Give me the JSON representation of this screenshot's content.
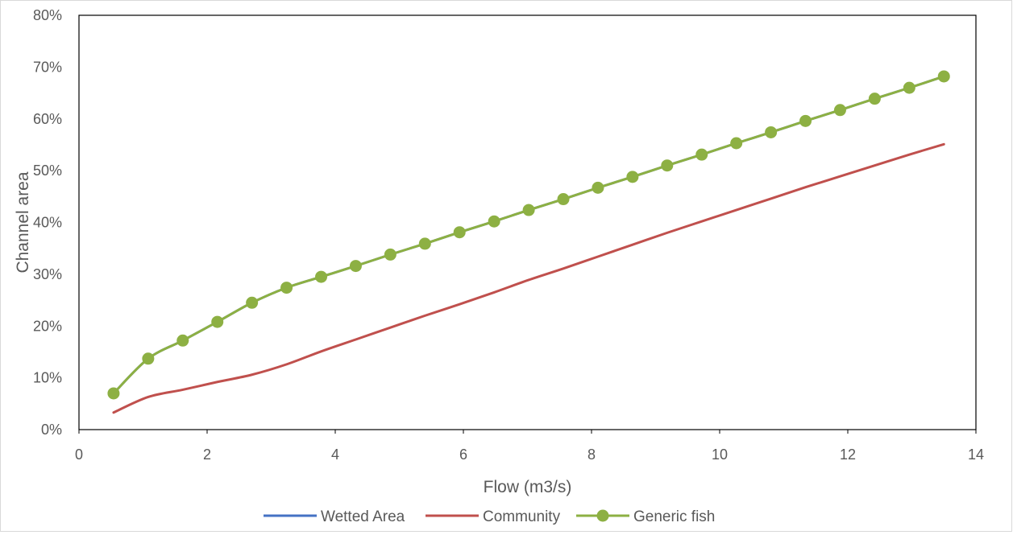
{
  "chart_data": {
    "type": "line",
    "title": "",
    "xlabel": "Flow (m3/s)",
    "ylabel": "Channel area",
    "xlim": [
      0,
      14
    ],
    "ylim": [
      0,
      0.8
    ],
    "x_ticks": [
      "0",
      "2",
      "4",
      "6",
      "8",
      "10",
      "12",
      "14"
    ],
    "y_ticks": [
      "0%",
      "10%",
      "20%",
      "30%",
      "40%",
      "50%",
      "60%",
      "70%",
      "80%"
    ],
    "grid": false,
    "legend_position": "bottom",
    "x": [
      0.54,
      1.08,
      1.62,
      2.16,
      2.7,
      3.24,
      3.78,
      4.32,
      4.86,
      5.4,
      5.94,
      6.48,
      7.02,
      7.56,
      8.1,
      8.64,
      9.18,
      9.72,
      10.26,
      10.8,
      11.34,
      11.88,
      12.42,
      12.96,
      13.5
    ],
    "series": [
      {
        "name": "Wetted Area",
        "color": "#4472C4",
        "marker": "none",
        "values": [
          0.07,
          0.137,
          0.172,
          0.208,
          0.245,
          0.274,
          0.295,
          0.316,
          0.338,
          0.359,
          0.381,
          0.402,
          0.424,
          0.445,
          0.467,
          0.488,
          0.51,
          0.531,
          0.553,
          0.574,
          0.596,
          0.617,
          0.639,
          0.66,
          0.682
        ]
      },
      {
        "name": "Community",
        "color": "#C0504D",
        "marker": "none",
        "values": [
          0.033,
          0.063,
          0.077,
          0.092,
          0.106,
          0.126,
          0.151,
          0.174,
          0.197,
          0.22,
          0.242,
          0.265,
          0.289,
          0.311,
          0.334,
          0.357,
          0.38,
          0.402,
          0.424,
          0.446,
          0.468,
          0.489,
          0.51,
          0.531,
          0.551
        ]
      },
      {
        "name": "Generic fish",
        "color": "#8DB043",
        "marker": "circle",
        "values": [
          0.07,
          0.137,
          0.172,
          0.208,
          0.245,
          0.274,
          0.295,
          0.316,
          0.338,
          0.359,
          0.381,
          0.402,
          0.424,
          0.445,
          0.467,
          0.488,
          0.51,
          0.531,
          0.553,
          0.574,
          0.596,
          0.617,
          0.639,
          0.66,
          0.682
        ]
      }
    ]
  }
}
